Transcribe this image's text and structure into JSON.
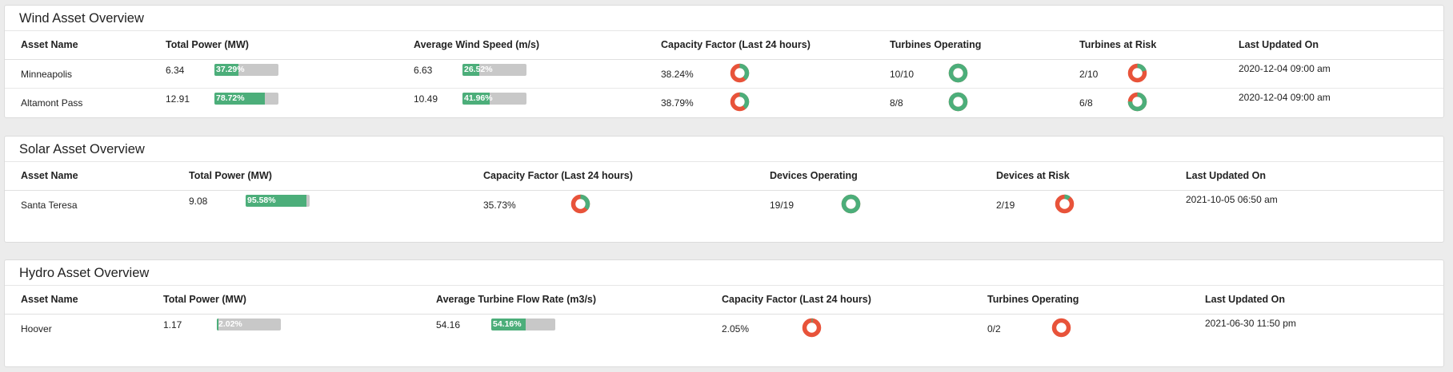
{
  "colors": {
    "good": "#4cae7a",
    "bad": "#e8533a",
    "track": "#c8c8c8"
  },
  "wind": {
    "title": "Wind Asset Overview",
    "headers": [
      "Asset Name",
      "Total Power (MW)",
      "Average Wind Speed (m/s)",
      "Capacity Factor (Last 24 hours)",
      "Turbines Operating",
      "Turbines at Risk",
      "Last Updated On"
    ],
    "rows": [
      {
        "name": "Minneapolis",
        "power": "6.34",
        "power_pct": 37.29,
        "power_pct_label": "37.29%",
        "speed": "6.63",
        "speed_pct": 26.52,
        "speed_pct_label": "26.52%",
        "cf": "38.24%",
        "cf_ratio": 0.3824,
        "operating": "10/10",
        "operating_ratio": 1.0,
        "risk": "2/10",
        "risk_ratio": 0.2,
        "updated": "2020-12-04 09:00 am"
      },
      {
        "name": "Altamont Pass",
        "power": "12.91",
        "power_pct": 78.72,
        "power_pct_label": "78.72%",
        "speed": "10.49",
        "speed_pct": 41.96,
        "speed_pct_label": "41.96%",
        "cf": "38.79%",
        "cf_ratio": 0.3879,
        "operating": "8/8",
        "operating_ratio": 1.0,
        "risk": "6/8",
        "risk_ratio": 0.75,
        "updated": "2020-12-04 09:00 am"
      }
    ]
  },
  "solar": {
    "title": "Solar Asset Overview",
    "headers": [
      "Asset Name",
      "Total Power (MW)",
      "Capacity Factor (Last 24 hours)",
      "Devices Operating",
      "Devices at Risk",
      "Last Updated On"
    ],
    "rows": [
      {
        "name": "Santa Teresa",
        "power": "9.08",
        "power_pct": 95.58,
        "power_pct_label": "95.58%",
        "cf": "35.73%",
        "cf_ratio": 0.3573,
        "operating": "19/19",
        "operating_ratio": 1.0,
        "risk": "2/19",
        "risk_ratio": 0.105,
        "updated": "2021-10-05 06:50 am"
      }
    ]
  },
  "hydro": {
    "title": "Hydro Asset Overview",
    "headers": [
      "Asset Name",
      "Total Power (MW)",
      "Average Turbine Flow Rate (m3/s)",
      "Capacity Factor (Last 24 hours)",
      "Turbines Operating",
      "Last Updated On"
    ],
    "rows": [
      {
        "name": "Hoover",
        "power": "1.17",
        "power_pct": 2.02,
        "power_pct_label": "2.02%",
        "flow": "54.16",
        "flow_pct": 54.16,
        "flow_pct_label": "54.16%",
        "cf": "2.05%",
        "cf_ratio": 0.0205,
        "operating": "0/2",
        "operating_ratio": 0.0,
        "updated": "2021-06-30 11:50 pm"
      }
    ]
  }
}
